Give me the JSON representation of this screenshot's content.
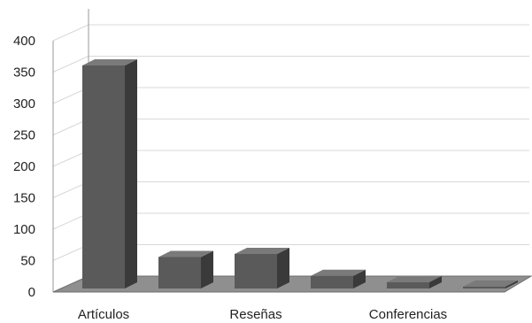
{
  "chart_data": {
    "type": "bar",
    "categories": [
      "Artículos",
      "",
      "Reseñas",
      "",
      "Conferencias",
      ""
    ],
    "values": [
      355,
      50,
      55,
      20,
      10,
      3
    ],
    "title": "",
    "xlabel": "",
    "ylabel": "",
    "ylim": [
      0,
      400
    ],
    "yticks": [
      0,
      50,
      100,
      150,
      200,
      250,
      300,
      350,
      400
    ],
    "grid": true,
    "three_d": true,
    "colors": {
      "bar_front": "#5a5a5a",
      "bar_side": "#3a3a3a",
      "bar_top": "#7a7a7a",
      "floor": "#8f8f8f",
      "floor_edge": "#6e6e6e",
      "gridline": "#d8d8d8",
      "wall": "#ffffff",
      "axis": "#999999",
      "text": "#222222"
    }
  }
}
